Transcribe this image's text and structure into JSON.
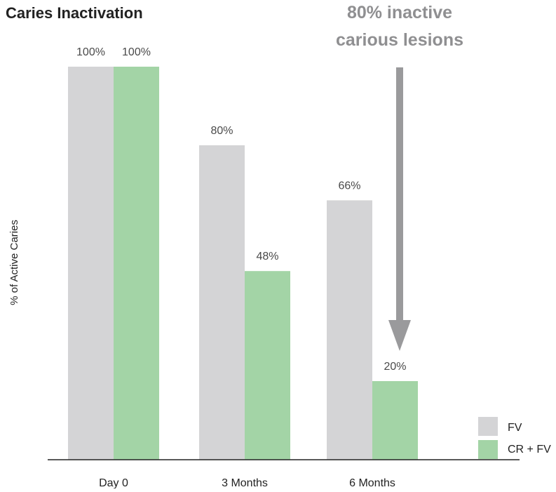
{
  "chart_data": {
    "type": "bar",
    "title": "Caries Inactivation",
    "ylabel": "% of Active Caries",
    "xlabel": "",
    "categories": [
      "Day 0",
      "3 Months",
      "6 Months"
    ],
    "series": [
      {
        "name": "FV",
        "values": [
          100,
          80,
          66
        ]
      },
      {
        "name": "CR + FV",
        "values": [
          100,
          48,
          20
        ]
      }
    ],
    "data_labels": [
      [
        "100%",
        "80%",
        "66%"
      ],
      [
        "100%",
        "48%",
        "20%"
      ]
    ],
    "ylim": [
      0,
      100
    ],
    "grid": false,
    "legend": {
      "position": "bottom-right"
    },
    "annotation": {
      "lines": [
        "80% inactive",
        "carious lesions"
      ]
    }
  },
  "colors": {
    "FV": "#d4d4d6",
    "CR + FV": "#a3d4a6",
    "arrow": "#9a9a9c",
    "text": "#222222",
    "label": "#4a4a4a",
    "annotation": "#8f8f91",
    "axis": "#222222"
  }
}
